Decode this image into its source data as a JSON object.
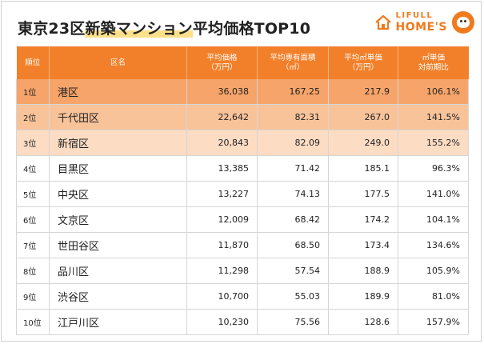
{
  "title_main": "東京23区",
  "title_highlight": "新築マンション",
  "title_rest": "平均価格TOP10",
  "logo": {
    "line1": "LIFULL",
    "line2": "HOME'S"
  },
  "colors": {
    "header": "#f2802a",
    "rank1": "#f6a469",
    "rank2": "#f9c39a",
    "rank3": "#fcdcc3"
  },
  "headers": [
    "順位",
    "区名",
    "平均価格\n（万円）",
    "平均専有面積\n（㎡）",
    "平均㎡単価\n（万円）",
    "㎡単価\n対前期比"
  ],
  "rows": [
    [
      "1位",
      "港区",
      "36,038",
      "167.25",
      "217.9",
      "106.1%"
    ],
    [
      "2位",
      "千代田区",
      "22,642",
      "82.31",
      "267.0",
      "141.5%"
    ],
    [
      "3位",
      "新宿区",
      "20,843",
      "82.09",
      "249.0",
      "155.2%"
    ],
    [
      "4位",
      "目黒区",
      "13,385",
      "71.42",
      "185.1",
      "96.3%"
    ],
    [
      "5位",
      "中央区",
      "13,227",
      "74.13",
      "177.5",
      "141.0%"
    ],
    [
      "6位",
      "文京区",
      "12,009",
      "68.42",
      "174.2",
      "104.1%"
    ],
    [
      "7位",
      "世田谷区",
      "11,870",
      "68.50",
      "173.4",
      "134.6%"
    ],
    [
      "8位",
      "品川区",
      "11,298",
      "57.54",
      "188.9",
      "105.9%"
    ],
    [
      "9位",
      "渋谷区",
      "10,700",
      "55.03",
      "189.9",
      "81.0%"
    ],
    [
      "10位",
      "江戸川区",
      "10,230",
      "75.56",
      "128.6",
      "157.9%"
    ]
  ]
}
